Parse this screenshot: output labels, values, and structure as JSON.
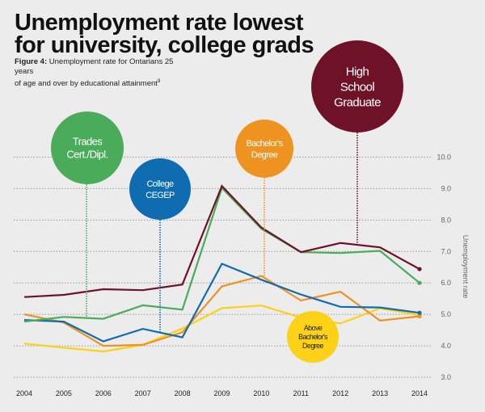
{
  "header": {
    "title_line1": "Unemployment rate lowest",
    "title_line2": "for university, college grads",
    "figure_label": "Figure 4:",
    "figure_caption_line1": " Unemployment rate for Ontarians 25 years",
    "figure_caption_line2": "of age and over by educational attainment",
    "footnote_mark": "9"
  },
  "chart_data": {
    "type": "line",
    "title": "Unemployment rate lowest for university, college grads",
    "subtitle": "Figure 4: Unemployment rate for Ontarians 25 years of age and over by educational attainment",
    "xlabel": "",
    "ylabel": "Unemployment rate",
    "x": [
      "2004",
      "2005",
      "2006",
      "2007",
      "2008",
      "2009",
      "2010",
      "2011",
      "2012",
      "2013",
      "2014"
    ],
    "ylim": [
      3.0,
      10.0
    ],
    "yticks": [
      "3.0",
      "4.0",
      "5.0",
      "6.0",
      "7.0",
      "8.0",
      "9.0",
      "10.0"
    ],
    "grid": true,
    "legend": "callout-circles",
    "series": [
      {
        "name": "High School Graduate",
        "label_lines": [
          "High",
          "School",
          "Graduate"
        ],
        "color": "#6e1228",
        "values": [
          5.55,
          5.62,
          5.8,
          5.77,
          5.95,
          9.08,
          7.76,
          6.98,
          7.27,
          7.13,
          6.44
        ],
        "callout_year_index": 8.4
      },
      {
        "name": "Trades Cert./Dipl.",
        "label_lines": [
          "Trades",
          "Cert./Dipl."
        ],
        "color": "#4aab5a",
        "values": [
          4.77,
          4.92,
          4.86,
          5.29,
          5.15,
          9.02,
          7.72,
          6.98,
          6.95,
          7.02,
          6.0
        ],
        "callout_year_index": 1.55
      },
      {
        "name": "College CEGEP",
        "label_lines": [
          "College",
          "CEGEP"
        ],
        "color": "#0f6cb0",
        "values": [
          4.82,
          4.77,
          4.14,
          4.54,
          4.27,
          6.61,
          6.1,
          5.63,
          5.24,
          5.22,
          5.05
        ],
        "callout_year_index": 3.45
      },
      {
        "name": "Bachelor's Degree",
        "label_lines": [
          "Bachelor's",
          "Degree"
        ],
        "color": "#ee9220",
        "values": [
          5.0,
          4.74,
          4.0,
          4.03,
          4.43,
          5.89,
          6.22,
          5.44,
          5.72,
          4.8,
          4.94
        ],
        "callout_year_index": 6.0
      },
      {
        "name": "Above Bachelor's Degree",
        "label_lines": [
          "Above",
          "Bachelor's",
          "Degree"
        ],
        "color": "#fcd116",
        "values": [
          4.07,
          3.94,
          3.82,
          4.03,
          4.55,
          5.2,
          5.28,
          4.9,
          4.71,
          5.19,
          4.97
        ],
        "callout_year_index": 7.3
      }
    ]
  }
}
